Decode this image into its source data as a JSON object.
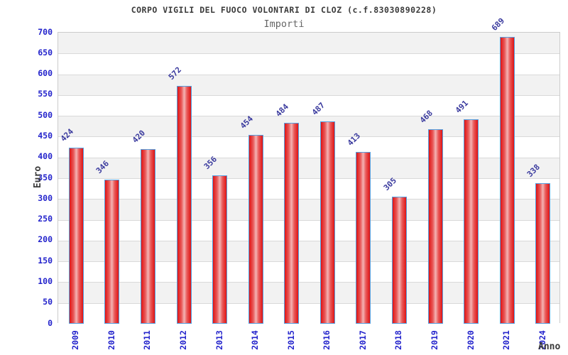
{
  "header": {
    "title": "CORPO VIGILI DEL FUOCO VOLONTARI DI CLOZ (c.f.83030890228)",
    "subtitle": "Importi"
  },
  "chart_data": {
    "type": "bar",
    "title": "CORPO VIGILI DEL FUOCO VOLONTARI DI CLOZ (c.f.83030890228)",
    "subtitle": "Importi",
    "categories": [
      "2009",
      "2010",
      "2011",
      "2012",
      "2013",
      "2014",
      "2015",
      "2016",
      "2017",
      "2018",
      "2019",
      "2020",
      "2021",
      "2024"
    ],
    "values": [
      424,
      346,
      420,
      572,
      356,
      454,
      484,
      487,
      413,
      305,
      468,
      491,
      689,
      338
    ],
    "xlabel": "Anno",
    "ylabel": "Euro",
    "ylim": [
      0,
      700
    ],
    "ytick_step": 50,
    "yticks": [
      0,
      50,
      100,
      150,
      200,
      250,
      300,
      350,
      400,
      450,
      500,
      550,
      600,
      650,
      700
    ],
    "grid": true,
    "legend_position": "none",
    "colors": {
      "bar_fill_dark": "#df1414",
      "bar_fill_light": "#f4b4b4",
      "bar_border": "#55a0e0",
      "tick_label": "#2424cc",
      "value_label": "#3a3a9e",
      "band_gray": "#f2f2f2",
      "band_white": "#ffffff",
      "gridline": "#d9d9d9",
      "title": "#3a3a3a",
      "subtitle": "#666666"
    }
  }
}
